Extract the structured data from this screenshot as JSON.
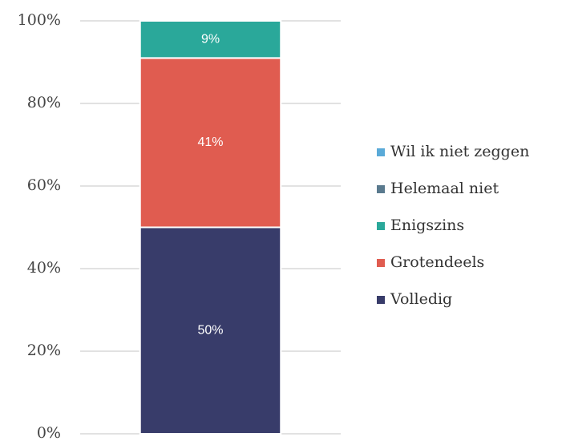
{
  "chart_data": {
    "type": "stacked_bar",
    "categories": [
      null
    ],
    "series": [
      {
        "name": "Volledig",
        "color": "#383c6a",
        "values": [
          50
        ],
        "value_labels": [
          "50%"
        ]
      },
      {
        "name": "Grotendeels",
        "color": "#e05c50",
        "values": [
          41
        ],
        "value_labels": [
          "41%"
        ]
      },
      {
        "name": "Enigszins",
        "color": "#2aa89a",
        "values": [
          9
        ],
        "value_labels": [
          "9%"
        ]
      },
      {
        "name": "Helemaal niet",
        "color": "#5a7a8e",
        "values": [
          0
        ]
      },
      {
        "name": "Wil ik niet zeggen",
        "color": "#5aaad8",
        "values": [
          0
        ]
      }
    ],
    "ylim": [
      0,
      100
    ],
    "yticks": [
      {
        "value": 0,
        "label": "0%"
      },
      {
        "value": 20,
        "label": "20%"
      },
      {
        "value": 40,
        "label": "40%"
      },
      {
        "value": 60,
        "label": "60%"
      },
      {
        "value": 80,
        "label": "80%"
      },
      {
        "value": 100,
        "label": "100%"
      }
    ],
    "grid": true,
    "legend": "right"
  }
}
